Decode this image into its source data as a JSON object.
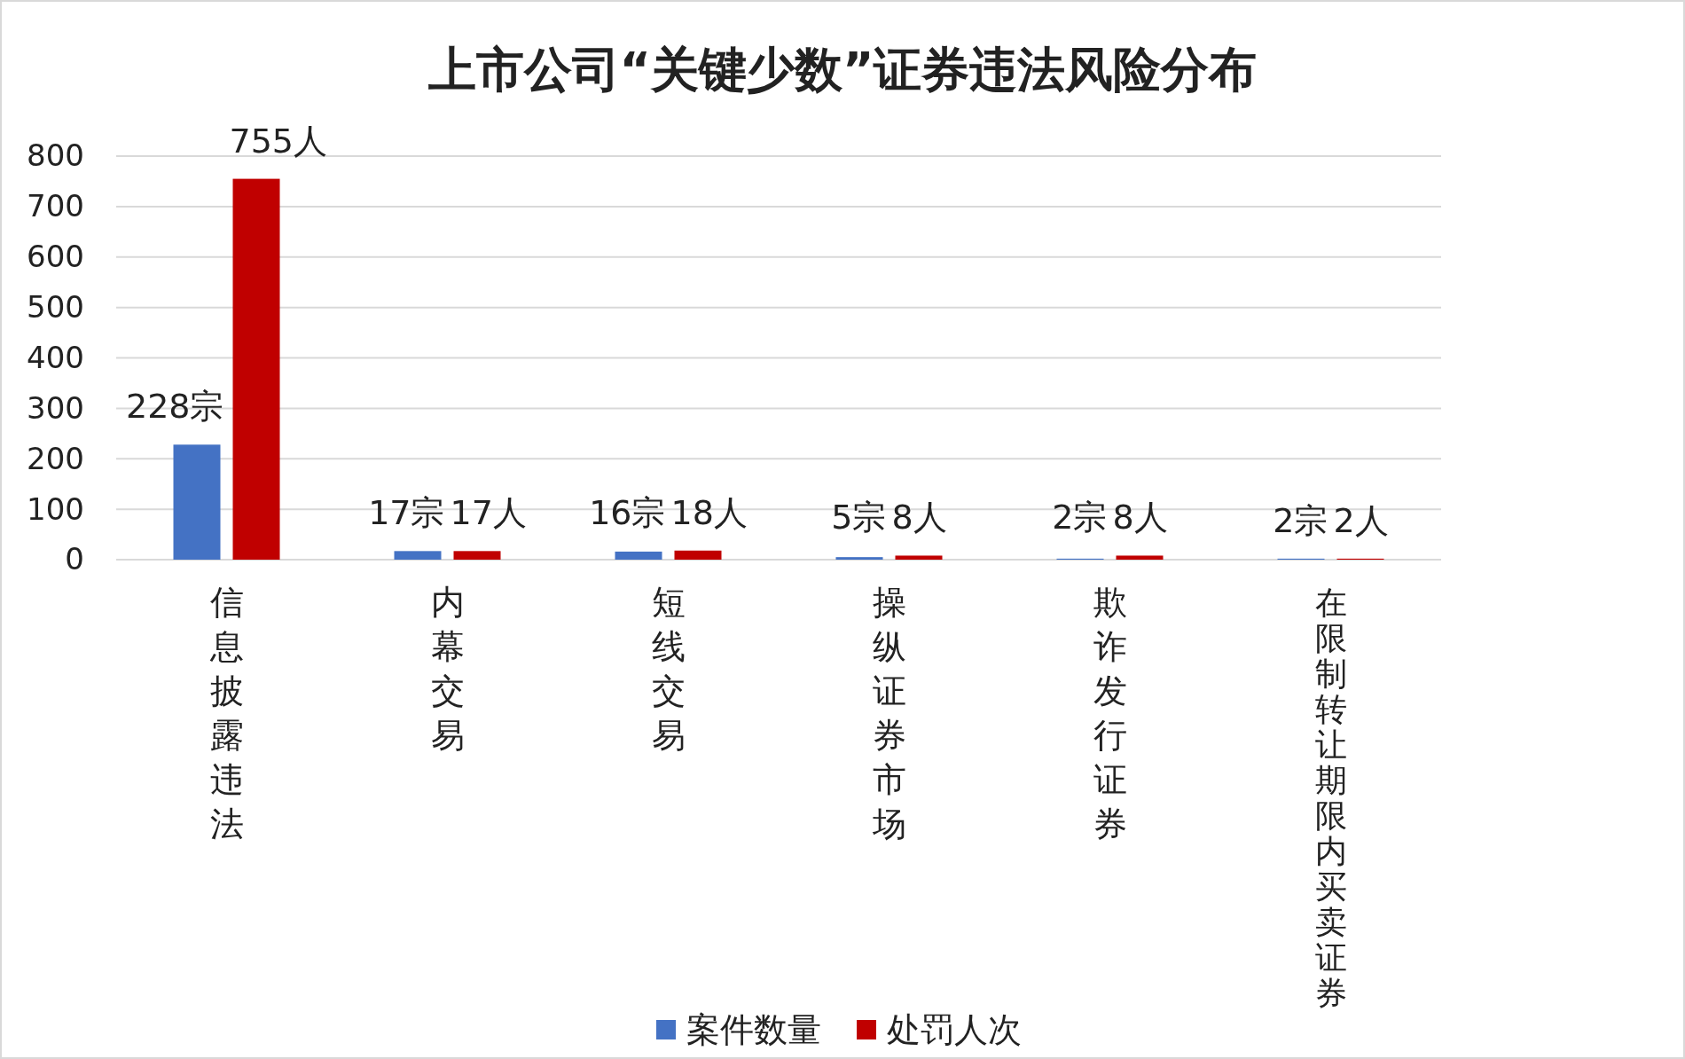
{
  "chart_data": {
    "type": "bar",
    "title": "上市公司“关键少数”证券违法风险分布",
    "categories": [
      "信息披露违法",
      "内幕交易",
      "短线交易",
      "操纵证券市场",
      "欺诈发行证券",
      "在限制转让期限内买卖证券"
    ],
    "series": [
      {
        "name": "案件数量",
        "color": "#4472c4",
        "values": [
          228,
          17,
          16,
          5,
          2,
          2
        ],
        "value_labels": [
          "228宗",
          "17宗",
          "16宗",
          "5宗",
          "2宗",
          "2宗"
        ]
      },
      {
        "name": "处罚人次",
        "color": "#c00000",
        "values": [
          755,
          17,
          18,
          8,
          8,
          2
        ],
        "value_labels": [
          "755人",
          "17人",
          "18人",
          "8人",
          "8人",
          "2人"
        ]
      }
    ],
    "ylim": [
      0,
      800
    ],
    "yticks": [
      0,
      100,
      200,
      300,
      400,
      500,
      600,
      700,
      800
    ],
    "grid": "y",
    "legend": "bottom"
  }
}
